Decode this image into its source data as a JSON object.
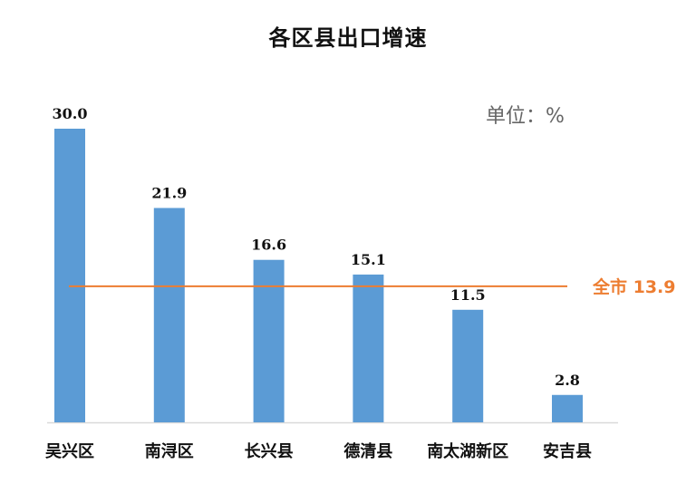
{
  "chart_data": {
    "type": "bar",
    "title": "各区县出口增速",
    "unit_label": "单位：%",
    "categories": [
      "吴兴区",
      "南浔区",
      "长兴县",
      "德清县",
      "南太湖新区",
      "安吉县"
    ],
    "values": [
      30.0,
      21.9,
      16.6,
      15.1,
      11.5,
      2.8
    ],
    "value_labels": [
      "30.0",
      "21.9",
      "16.6",
      "15.1",
      "11.5",
      "2.8"
    ],
    "ylim": [
      0,
      30
    ],
    "grid": false,
    "legend": "none",
    "reference_line": {
      "value": 13.9,
      "label": "全市 13.9"
    },
    "colors": {
      "bar": "#5B9BD5",
      "reference_line": "#ED7D31",
      "axis": "#D9D9D9"
    }
  }
}
